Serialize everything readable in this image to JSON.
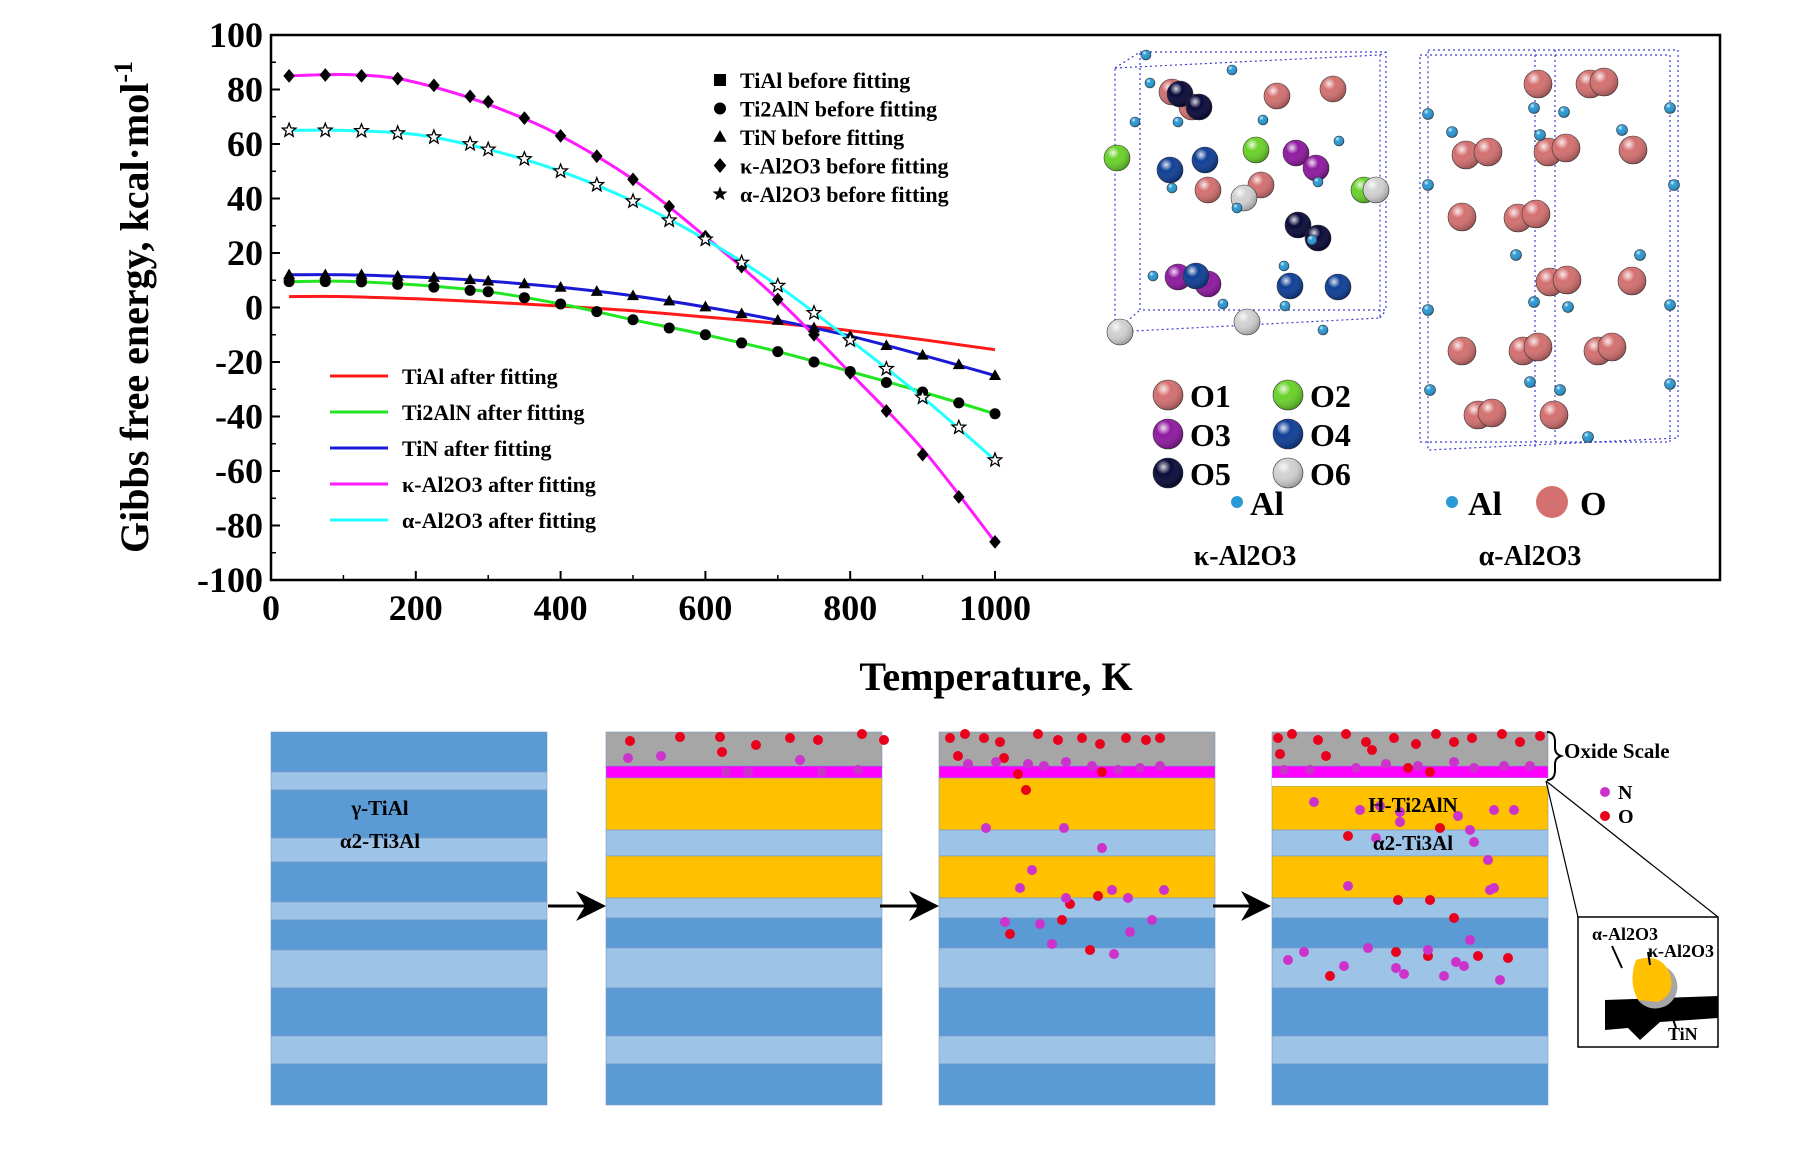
{
  "chart_data": {
    "type": "line",
    "title": "",
    "xlabel": "Temperature, K",
    "ylabel": "Gibbs free energy, kcal·mol",
    "ylabel_sup": "-1",
    "xlim": [
      0,
      1000
    ],
    "ylim": [
      -100,
      100
    ],
    "xticks": [
      "0",
      "200",
      "400",
      "600",
      "800",
      "1000"
    ],
    "yticks": [
      "100",
      "80",
      "60",
      "40",
      "20",
      "0",
      "-20",
      "-40",
      "-60",
      "-80",
      "-100"
    ],
    "grid": false,
    "series": [
      {
        "name": "TiAl after fitting",
        "color": "#ff1a1a",
        "fit": [
          [
            25,
            4
          ],
          [
            100,
            4
          ],
          [
            200,
            3.2
          ],
          [
            300,
            2
          ],
          [
            400,
            0.5
          ],
          [
            500,
            -1.2
          ],
          [
            600,
            -3.5
          ],
          [
            700,
            -5.8
          ],
          [
            800,
            -8.5
          ],
          [
            900,
            -11.8
          ],
          [
            1000,
            -15.5
          ]
        ]
      },
      {
        "name": "Ti2AlN after fitting",
        "color": "#22e622",
        "fit": [
          [
            25,
            9.5
          ],
          [
            100,
            9.6
          ],
          [
            200,
            8.3
          ],
          [
            300,
            5.8
          ],
          [
            400,
            1.3
          ],
          [
            500,
            -4.5
          ],
          [
            600,
            -10
          ],
          [
            700,
            -16.2
          ],
          [
            800,
            -23.5
          ],
          [
            900,
            -31
          ],
          [
            1000,
            -39
          ]
        ]
      },
      {
        "name": "TiN after fitting",
        "color": "#1a1ad6",
        "fit": [
          [
            25,
            12
          ],
          [
            100,
            12
          ],
          [
            200,
            11.2
          ],
          [
            300,
            9.7
          ],
          [
            400,
            7.4
          ],
          [
            500,
            4.3
          ],
          [
            600,
            0.2
          ],
          [
            700,
            -4.7
          ],
          [
            800,
            -10.5
          ],
          [
            900,
            -17.5
          ],
          [
            1000,
            -25
          ]
        ]
      },
      {
        "name": "κ-Al2O3 after fitting",
        "color": "#ff1aff",
        "fit": [
          [
            25,
            85
          ],
          [
            100,
            85.5
          ],
          [
            175,
            84
          ],
          [
            250,
            79
          ],
          [
            325,
            72
          ],
          [
            400,
            63
          ],
          [
            500,
            47
          ],
          [
            600,
            26
          ],
          [
            700,
            3
          ],
          [
            800,
            -24
          ],
          [
            900,
            -52
          ],
          [
            1000,
            -86
          ]
        ]
      },
      {
        "name": "α-Al2O3 after fitting",
        "color": "#22ffff",
        "fit": [
          [
            25,
            65
          ],
          [
            100,
            65
          ],
          [
            200,
            63.5
          ],
          [
            300,
            58
          ],
          [
            400,
            50
          ],
          [
            500,
            39
          ],
          [
            600,
            25
          ],
          [
            700,
            8
          ],
          [
            800,
            -12
          ],
          [
            900,
            -33
          ],
          [
            1000,
            -56
          ]
        ]
      }
    ],
    "markers": [
      {
        "name": "TiAl before fitting",
        "symbol": "square",
        "points": []
      },
      {
        "name": "Ti2AlN before fitting",
        "symbol": "circle",
        "points": [
          [
            25,
            9.5
          ],
          [
            75,
            9.5
          ],
          [
            125,
            9.4
          ],
          [
            175,
            8.5
          ],
          [
            225,
            7.5
          ],
          [
            275,
            6.3
          ],
          [
            300,
            5.8
          ],
          [
            350,
            3.6
          ],
          [
            400,
            1.3
          ],
          [
            450,
            -1.5
          ],
          [
            500,
            -4.5
          ],
          [
            550,
            -7.5
          ],
          [
            600,
            -10
          ],
          [
            650,
            -13
          ],
          [
            700,
            -16.2
          ],
          [
            750,
            -20
          ],
          [
            800,
            -23.5
          ],
          [
            850,
            -27.5
          ],
          [
            900,
            -31
          ],
          [
            950,
            -35
          ],
          [
            1000,
            -39
          ]
        ]
      },
      {
        "name": "TiN before fitting",
        "symbol": "triangle",
        "points": [
          [
            25,
            12
          ],
          [
            75,
            12
          ],
          [
            125,
            12
          ],
          [
            175,
            11.5
          ],
          [
            225,
            11
          ],
          [
            275,
            10.2
          ],
          [
            300,
            9.7
          ],
          [
            350,
            8.7
          ],
          [
            400,
            7.4
          ],
          [
            450,
            5.9
          ],
          [
            500,
            4.3
          ],
          [
            550,
            2.4
          ],
          [
            600,
            0.2
          ],
          [
            650,
            -2.3
          ],
          [
            700,
            -4.7
          ],
          [
            750,
            -7.5
          ],
          [
            800,
            -10.5
          ],
          [
            850,
            -14
          ],
          [
            900,
            -17.5
          ],
          [
            950,
            -21
          ],
          [
            1000,
            -25
          ]
        ]
      },
      {
        "name": "κ-Al2O3 before fitting",
        "symbol": "diamond",
        "points": [
          [
            25,
            85
          ],
          [
            75,
            85.3
          ],
          [
            125,
            85
          ],
          [
            175,
            84
          ],
          [
            225,
            81.5
          ],
          [
            275,
            77.5
          ],
          [
            300,
            75.5
          ],
          [
            350,
            69.5
          ],
          [
            400,
            63
          ],
          [
            450,
            55.5
          ],
          [
            500,
            47
          ],
          [
            550,
            37
          ],
          [
            600,
            26
          ],
          [
            650,
            15
          ],
          [
            700,
            3
          ],
          [
            750,
            -10
          ],
          [
            800,
            -24
          ],
          [
            850,
            -38
          ],
          [
            900,
            -54
          ],
          [
            950,
            -69.5
          ],
          [
            1000,
            -86
          ]
        ]
      },
      {
        "name": "α-Al2O3 before fitting",
        "symbol": "star",
        "points": [
          [
            25,
            65
          ],
          [
            75,
            65
          ],
          [
            125,
            64.8
          ],
          [
            175,
            64
          ],
          [
            225,
            62.5
          ],
          [
            275,
            60
          ],
          [
            300,
            58
          ],
          [
            350,
            54.5
          ],
          [
            400,
            50
          ],
          [
            450,
            45
          ],
          [
            500,
            39
          ],
          [
            550,
            32
          ],
          [
            600,
            25
          ],
          [
            650,
            16.5
          ],
          [
            700,
            8
          ],
          [
            750,
            -2
          ],
          [
            800,
            -12
          ],
          [
            850,
            -22.5
          ],
          [
            900,
            -33
          ],
          [
            950,
            -44
          ],
          [
            1000,
            -56
          ]
        ]
      }
    ]
  },
  "crystal": {
    "kappa_legend": [
      {
        "label": "O1",
        "color": "#d47070"
      },
      {
        "label": "O2",
        "color": "#6ad22a"
      },
      {
        "label": "O3",
        "color": "#8f1aa0"
      },
      {
        "label": "O4",
        "color": "#0f3f96"
      },
      {
        "label": "O5",
        "color": "#0a0a3a"
      },
      {
        "label": "O6",
        "color": "#d2d2d2"
      }
    ],
    "kappa_al": "Al",
    "kappa_name": "κ-Al2O3",
    "alpha_al": "Al",
    "alpha_o": "O",
    "alpha_name": "α-Al2O3",
    "al_color": "#2a9ad6",
    "o_color": "#d47070"
  },
  "diagram": {
    "label_gamma": "γ-TiAl",
    "label_alpha2": "α2-Ti3Al",
    "label_h": "H-Ti2AlN",
    "label_alpha2_final": "α2-Ti3Al",
    "oxide_scale": "Oxide Scale",
    "legend_n": "N",
    "legend_o": "O",
    "inset_alpha": "α-Al2O3",
    "inset_kappa": "κ-Al2O3",
    "inset_tin": "TiN",
    "colors": {
      "dark_blue": "#5b9bd5",
      "light_blue": "#9dc3e6",
      "gold": "#ffc000",
      "magenta": "#ff00ff",
      "gray": "#a6a6a6",
      "n": "#cc33cc",
      "o": "#e8001c"
    }
  }
}
